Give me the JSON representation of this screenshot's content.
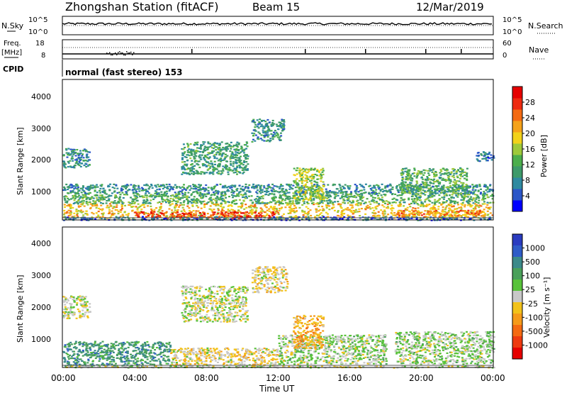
{
  "header": {
    "title": "Zhongshan Station (fitACF)",
    "beam": "Beam 15",
    "date": "12/Mar/2019"
  },
  "strips": {
    "nsky": {
      "label": "N.Sky",
      "tick_top": "10^5",
      "tick_bottom": "10^0",
      "right_label": "N.Search",
      "right_tick_top": "10^5",
      "right_tick_bottom": "10^0"
    },
    "freq": {
      "label_line1": "Freq.",
      "label_line2": "[MHz]",
      "tick_top": "18",
      "tick_bottom": "8",
      "right_label": "Nave",
      "right_tick_top": "60",
      "right_tick_bottom": "0"
    },
    "cpid": {
      "label": "CPID",
      "value": "normal (fast stereo) 153"
    }
  },
  "panels": {
    "power": {
      "ylabel": "Slant Range [km]",
      "yticks": [
        "4000",
        "3000",
        "2000",
        "1000"
      ],
      "colorbar_label": "Power [dB]",
      "colorbar_ticks": [
        "28",
        "24",
        "20",
        "16",
        "12",
        "8",
        "4"
      ],
      "colors": [
        "#0000ff",
        "#2b56c8",
        "#2f8aa0",
        "#3e9a6a",
        "#4cae4c",
        "#9ec93a",
        "#f2d21a",
        "#f5a21a",
        "#f46a12",
        "#ee2a10",
        "#e60000"
      ]
    },
    "velocity": {
      "ylabel": "Slant Range [km]",
      "yticks": [
        "4000",
        "3000",
        "2000",
        "1000"
      ],
      "colorbar_label": "Velocity [m s⁻¹]",
      "colorbar_ticks": [
        "1000",
        "500",
        "100",
        "25",
        "-25",
        "-100",
        "-500",
        "-1000"
      ],
      "colors": [
        "#2a3cc0",
        "#2f5cc8",
        "#3c8a8a",
        "#4aa05a",
        "#58c23a",
        "#c8c8c8",
        "#f2c21a",
        "#f59a1a",
        "#f46a12",
        "#ee3a10",
        "#e60000"
      ]
    }
  },
  "xaxis": {
    "label": "Time UT",
    "ticks": [
      "00:00",
      "04:00",
      "08:00",
      "12:00",
      "16:00",
      "20:00",
      "00:00"
    ]
  },
  "chart_data": [
    {
      "type": "heatmap",
      "title": "Zhongshan Station (fitACF) Beam 15",
      "subtitle": "12/Mar/2019",
      "xlabel": "Time UT",
      "ylabel": "Slant Range [km]",
      "zlabel": "Power [dB]",
      "xlim": [
        0,
        24
      ],
      "ylim": [
        180,
        4500
      ],
      "zlim": [
        0,
        32
      ],
      "x_tick_labels": [
        "00:00",
        "04:00",
        "08:00",
        "12:00",
        "16:00",
        "20:00",
        "00:00"
      ],
      "y_tick_labels": [
        "1000",
        "2000",
        "3000",
        "4000"
      ],
      "scatter_regions": [
        {
          "t_start": 0.0,
          "t_end": 24.0,
          "range_low": 250,
          "range_high": 700,
          "value": 20
        },
        {
          "t_start": 0.0,
          "t_end": 24.0,
          "range_low": 700,
          "range_high": 1000,
          "value": 12
        },
        {
          "t_start": 0.0,
          "t_end": 24.0,
          "range_low": 1000,
          "range_high": 1300,
          "value": 8
        },
        {
          "t_start": 0.0,
          "t_end": 24.0,
          "range_low": 190,
          "range_high": 300,
          "value": 5
        },
        {
          "t_start": 0.0,
          "t_end": 1.5,
          "range_low": 1800,
          "range_high": 2400,
          "value": 8
        },
        {
          "t_start": 6.6,
          "t_end": 10.3,
          "range_low": 1600,
          "range_high": 2600,
          "value": 10
        },
        {
          "t_start": 4.0,
          "t_end": 12.0,
          "range_low": 250,
          "range_high": 450,
          "value": 28
        },
        {
          "t_start": 10.5,
          "t_end": 12.3,
          "range_low": 2600,
          "range_high": 3300,
          "value": 8
        },
        {
          "t_start": 12.8,
          "t_end": 14.5,
          "range_low": 800,
          "range_high": 1800,
          "value": 16
        },
        {
          "t_start": 18.8,
          "t_end": 22.5,
          "range_low": 1000,
          "range_high": 1800,
          "value": 12
        },
        {
          "t_start": 18.5,
          "t_end": 23.5,
          "range_low": 300,
          "range_high": 500,
          "value": 24
        },
        {
          "t_start": 23.0,
          "t_end": 24.0,
          "range_low": 2000,
          "range_high": 2300,
          "value": 6
        }
      ]
    },
    {
      "type": "heatmap",
      "title": "Zhongshan Station (fitACF) Beam 15",
      "subtitle": "12/Mar/2019",
      "xlabel": "Time UT",
      "ylabel": "Slant Range [km]",
      "zlabel": "Velocity [m s⁻¹]",
      "xlim": [
        0,
        24
      ],
      "ylim": [
        180,
        4500
      ],
      "zlim": [
        -1000,
        1000
      ],
      "x_tick_labels": [
        "00:00",
        "04:00",
        "08:00",
        "12:00",
        "16:00",
        "20:00",
        "00:00"
      ],
      "y_tick_labels": [
        "1000",
        "2000",
        "3000",
        "4000"
      ],
      "scatter_regions": [
        {
          "t_start": 0.0,
          "t_end": 6.0,
          "range_low": 250,
          "range_high": 1000,
          "value": 500
        },
        {
          "t_start": 6.0,
          "t_end": 12.0,
          "range_low": 250,
          "range_high": 800,
          "value": -100
        },
        {
          "t_start": 12.0,
          "t_end": 18.0,
          "range_low": 300,
          "range_high": 1200,
          "value": 100
        },
        {
          "t_start": 18.5,
          "t_end": 24.0,
          "range_low": 300,
          "range_high": 1300,
          "value": 100
        },
        {
          "t_start": 0.0,
          "t_end": 1.5,
          "range_low": 1700,
          "range_high": 2400,
          "value": 0
        },
        {
          "t_start": 6.6,
          "t_end": 10.3,
          "range_low": 1600,
          "range_high": 2700,
          "value": 0
        },
        {
          "t_start": 12.8,
          "t_end": 14.5,
          "range_low": 800,
          "range_high": 1800,
          "value": -300
        },
        {
          "t_start": 10.5,
          "t_end": 12.5,
          "range_low": 2500,
          "range_high": 3300,
          "value": -100
        },
        {
          "t_start": 0.0,
          "t_end": 24.0,
          "range_low": 190,
          "range_high": 250,
          "value": 0
        }
      ]
    }
  ]
}
